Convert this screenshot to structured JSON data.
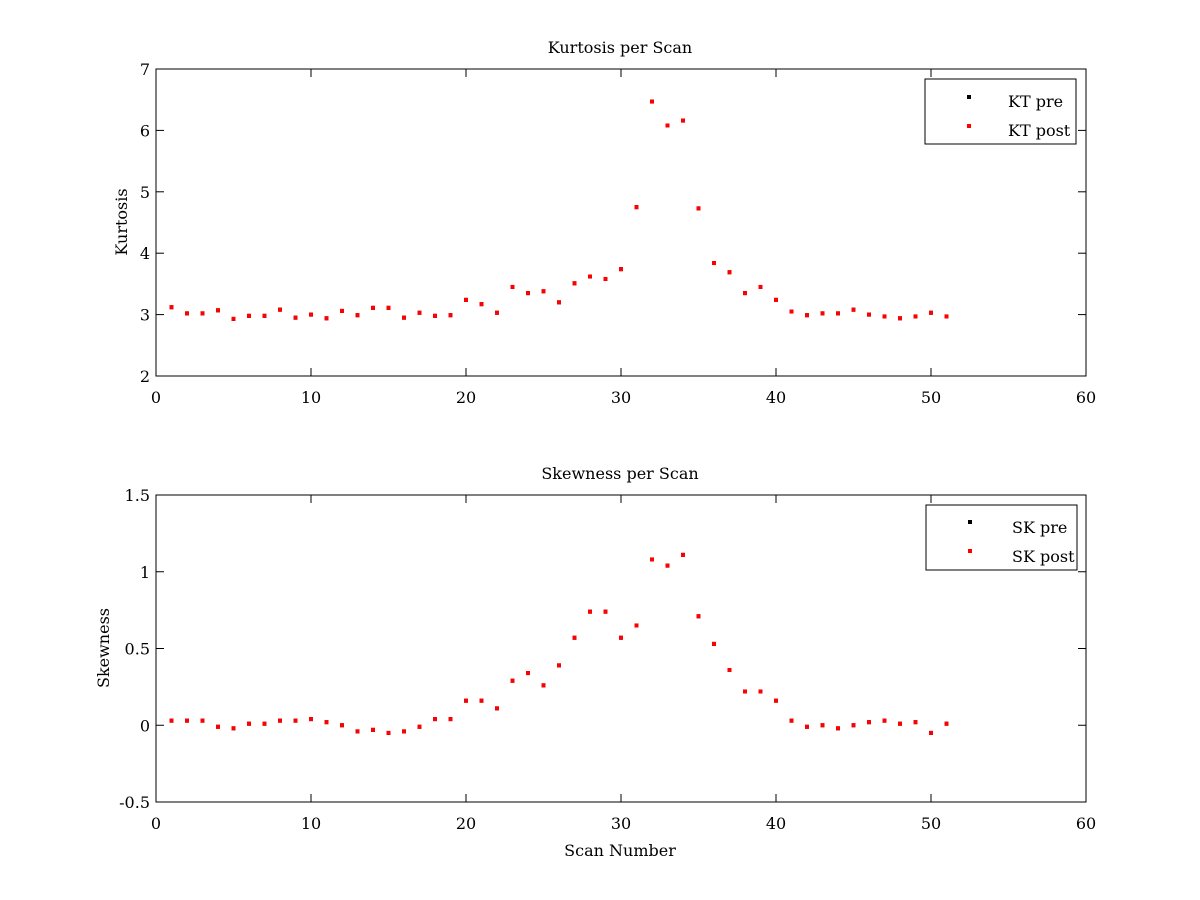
{
  "chart_data": [
    {
      "type": "scatter",
      "title": "Kurtosis per Scan",
      "xlabel": "",
      "ylabel": "Kurtosis",
      "xlim": [
        0,
        60
      ],
      "ylim": [
        2,
        7
      ],
      "xticks": [
        "0",
        "10",
        "20",
        "30",
        "40",
        "50",
        "60"
      ],
      "yticks": [
        "2",
        "3",
        "4",
        "5",
        "6",
        "7"
      ],
      "grid": false,
      "legend_position": "top-right",
      "series": [
        {
          "name": "KT pre",
          "color": "#000000",
          "x": [
            1,
            2,
            3,
            4,
            5,
            6,
            7,
            8,
            9,
            10,
            11,
            12,
            13,
            14,
            15,
            16,
            17,
            18,
            19,
            20,
            21,
            22,
            23,
            24,
            25,
            26,
            27,
            28,
            29,
            30,
            31,
            32,
            33,
            34,
            35,
            36,
            37,
            38,
            39,
            40,
            41,
            42,
            43,
            44,
            45,
            46,
            47,
            48,
            49,
            50,
            51
          ],
          "y": [
            3.12,
            3.02,
            3.02,
            3.07,
            2.93,
            2.98,
            2.98,
            3.08,
            2.95,
            3.0,
            2.94,
            3.06,
            2.99,
            3.11,
            3.11,
            2.95,
            3.03,
            2.98,
            2.99,
            3.24,
            3.17,
            3.03,
            3.45,
            3.35,
            3.38,
            3.2,
            3.51,
            3.62,
            3.58,
            3.74,
            4.75,
            6.47,
            6.08,
            6.16,
            4.73,
            3.84,
            3.69,
            3.35,
            3.45,
            3.24,
            3.05,
            2.99,
            3.02,
            3.02,
            3.08,
            3.0,
            2.97,
            2.94,
            2.97,
            3.03,
            2.97
          ]
        },
        {
          "name": "KT post",
          "color": "#ff0000",
          "x": [
            1,
            2,
            3,
            4,
            5,
            6,
            7,
            8,
            9,
            10,
            11,
            12,
            13,
            14,
            15,
            16,
            17,
            18,
            19,
            20,
            21,
            22,
            23,
            24,
            25,
            26,
            27,
            28,
            29,
            30,
            31,
            32,
            33,
            34,
            35,
            36,
            37,
            38,
            39,
            40,
            41,
            42,
            43,
            44,
            45,
            46,
            47,
            48,
            49,
            50,
            51
          ],
          "y": [
            3.12,
            3.02,
            3.02,
            3.07,
            2.93,
            2.98,
            2.98,
            3.08,
            2.95,
            3.0,
            2.94,
            3.06,
            2.99,
            3.11,
            3.11,
            2.95,
            3.03,
            2.98,
            2.99,
            3.24,
            3.17,
            3.03,
            3.45,
            3.35,
            3.38,
            3.2,
            3.51,
            3.62,
            3.58,
            3.74,
            4.75,
            6.47,
            6.08,
            6.16,
            4.73,
            3.84,
            3.69,
            3.35,
            3.45,
            3.24,
            3.05,
            2.99,
            3.02,
            3.02,
            3.08,
            3.0,
            2.97,
            2.94,
            2.97,
            3.03,
            2.97
          ]
        }
      ]
    },
    {
      "type": "scatter",
      "title": "Skewness per Scan",
      "xlabel": "Scan Number",
      "ylabel": "Skewness",
      "xlim": [
        0,
        60
      ],
      "ylim": [
        -0.5,
        1.5
      ],
      "xticks": [
        "0",
        "10",
        "20",
        "30",
        "40",
        "50",
        "60"
      ],
      "yticks": [
        "-0.5",
        "0",
        "0.5",
        "1",
        "1.5"
      ],
      "grid": false,
      "legend_position": "top-right",
      "series": [
        {
          "name": "SK pre",
          "color": "#000000",
          "x": [
            1,
            2,
            3,
            4,
            5,
            6,
            7,
            8,
            9,
            10,
            11,
            12,
            13,
            14,
            15,
            16,
            17,
            18,
            19,
            20,
            21,
            22,
            23,
            24,
            25,
            26,
            27,
            28,
            29,
            30,
            31,
            32,
            33,
            34,
            35,
            36,
            37,
            38,
            39,
            40,
            41,
            42,
            43,
            44,
            45,
            46,
            47,
            48,
            49,
            50,
            51
          ],
          "y": [
            0.03,
            0.03,
            0.03,
            -0.01,
            -0.02,
            0.01,
            0.01,
            0.03,
            0.03,
            0.04,
            0.02,
            0.0,
            -0.04,
            -0.03,
            -0.05,
            -0.04,
            -0.01,
            0.04,
            0.04,
            0.16,
            0.16,
            0.11,
            0.29,
            0.34,
            0.26,
            0.39,
            0.57,
            0.74,
            0.74,
            0.57,
            0.65,
            1.08,
            1.04,
            1.11,
            0.71,
            0.53,
            0.36,
            0.22,
            0.22,
            0.16,
            0.03,
            -0.01,
            0.0,
            -0.02,
            0.0,
            0.02,
            0.03,
            0.01,
            0.02,
            -0.05,
            0.01
          ]
        },
        {
          "name": "SK post",
          "color": "#ff0000",
          "x": [
            1,
            2,
            3,
            4,
            5,
            6,
            7,
            8,
            9,
            10,
            11,
            12,
            13,
            14,
            15,
            16,
            17,
            18,
            19,
            20,
            21,
            22,
            23,
            24,
            25,
            26,
            27,
            28,
            29,
            30,
            31,
            32,
            33,
            34,
            35,
            36,
            37,
            38,
            39,
            40,
            41,
            42,
            43,
            44,
            45,
            46,
            47,
            48,
            49,
            50,
            51
          ],
          "y": [
            0.03,
            0.03,
            0.03,
            -0.01,
            -0.02,
            0.01,
            0.01,
            0.03,
            0.03,
            0.04,
            0.02,
            0.0,
            -0.04,
            -0.03,
            -0.05,
            -0.04,
            -0.01,
            0.04,
            0.04,
            0.16,
            0.16,
            0.11,
            0.29,
            0.34,
            0.26,
            0.39,
            0.57,
            0.74,
            0.74,
            0.57,
            0.65,
            1.08,
            1.04,
            1.11,
            0.71,
            0.53,
            0.36,
            0.22,
            0.22,
            0.16,
            0.03,
            -0.01,
            0.0,
            -0.02,
            0.0,
            0.02,
            0.03,
            0.01,
            0.02,
            -0.05,
            0.01
          ]
        }
      ]
    }
  ]
}
